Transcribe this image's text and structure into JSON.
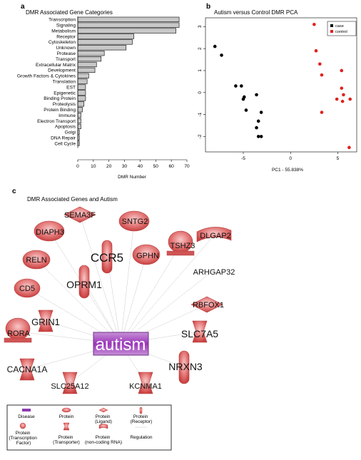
{
  "panel_letters": {
    "a": "a",
    "b": "b",
    "c": "c"
  },
  "chart_data": [
    {
      "type": "bar",
      "orientation": "horizontal",
      "title": "DMR Associated Gene Categories",
      "xlabel": "DMR Number",
      "ylabel": "",
      "xlim": [
        0,
        70
      ],
      "xticks": [
        0,
        10,
        20,
        30,
        40,
        50,
        60,
        70
      ],
      "grid": false,
      "bar_color": "#c8c8c8",
      "categories": [
        "Transcription",
        "Signaling",
        "Metabolism",
        "Receptor",
        "Cytoskeleton",
        "Unknown",
        "Protease",
        "Transport",
        "Extracellular Matrix",
        "Development",
        "Growth Factors & Cytokines",
        "Translation",
        "EST",
        "Epigenetic",
        "Binding Protein",
        "Proteolysis",
        "Protein Binding",
        "Immune",
        "Electron Transport",
        "Apoptosis",
        "Golgi",
        "DNA Repair",
        "Cell Cycle"
      ],
      "values": [
        65,
        65,
        63,
        36,
        35,
        31,
        17,
        15,
        12,
        11,
        7,
        6,
        5,
        5,
        5,
        4,
        3,
        2,
        2,
        2,
        1,
        1,
        1
      ]
    },
    {
      "type": "scatter",
      "title": "Autism versus Control DMR PCA",
      "xlabel": "PC1 - 55.838%",
      "ylabel": "",
      "xlim": [
        -9,
        7
      ],
      "ylim": [
        -2.7,
        3.4
      ],
      "xticks": [
        -5,
        0,
        5
      ],
      "yticks": [
        -2,
        -1,
        0,
        1,
        2,
        3
      ],
      "grid": false,
      "legend_position": "top-right",
      "series": [
        {
          "name": "case",
          "color": "#000000",
          "points": [
            [
              -8.0,
              2.1
            ],
            [
              -7.3,
              1.7
            ],
            [
              -5.8,
              0.3
            ],
            [
              -5.2,
              0.3
            ],
            [
              -4.9,
              -0.2
            ],
            [
              -5.0,
              -0.3
            ],
            [
              -4.7,
              -0.8
            ],
            [
              -3.6,
              -0.1
            ],
            [
              -3.1,
              -0.9
            ],
            [
              -3.4,
              -1.3
            ],
            [
              -3.6,
              -1.6
            ],
            [
              -3.4,
              -2.0
            ],
            [
              -3.1,
              -2.0
            ]
          ]
        },
        {
          "name": "control",
          "color": "#e0211d",
          "points": [
            [
              2.5,
              3.1
            ],
            [
              2.7,
              1.9
            ],
            [
              3.1,
              1.3
            ],
            [
              3.3,
              0.8
            ],
            [
              5.4,
              1.0
            ],
            [
              5.4,
              0.2
            ],
            [
              5.6,
              -0.1
            ],
            [
              4.9,
              -0.3
            ],
            [
              5.5,
              -0.4
            ],
            [
              6.3,
              -0.3
            ],
            [
              3.3,
              -0.9
            ],
            [
              6.2,
              -2.5
            ]
          ]
        }
      ]
    }
  ],
  "network": {
    "title": "DMR Associated Genes and Autism",
    "center": "autism",
    "nodes": [
      "SEMA3F",
      "SNTG2",
      "DIAPH3",
      "DLGAP2",
      "CCR5",
      "GPHN",
      "TSHZ3",
      "RELN",
      "ARHGAP32",
      "OPRM1",
      "CD5",
      "RBFOX1",
      "GRIN1",
      "RORA",
      "SLC7A5",
      "CACNA1A",
      "NRXN3",
      "SLC25A12",
      "KCNMA1"
    ]
  },
  "legend": {
    "disease": "Disease",
    "protein": "Protein",
    "ligand": "Protein\n(Ligand)",
    "receptor": "Protein\n(Receptor)",
    "tf": "Protein\n(Transcription\nFactor)",
    "transporter": "Protein\n(Transporter)",
    "ncrna": "Protein\n(non-coding RNA)",
    "regulation": "Regulation"
  }
}
